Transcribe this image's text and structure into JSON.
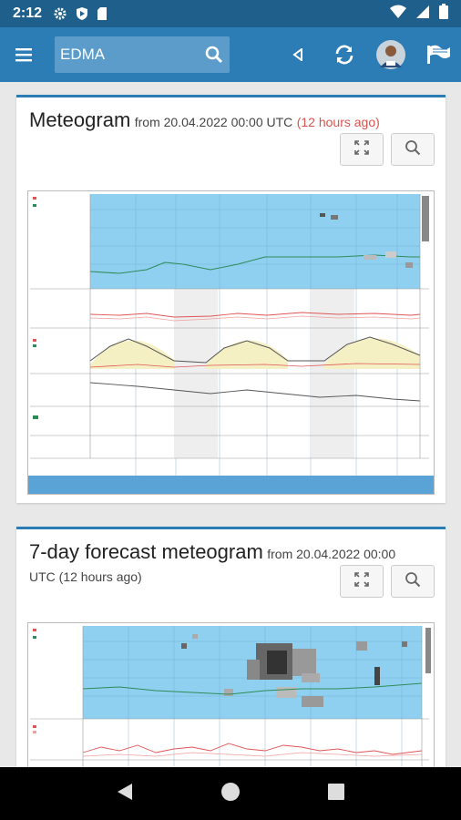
{
  "status": {
    "time": "2:12",
    "icons": [
      "gear-icon",
      "shield-icon",
      "sd-card-icon",
      "wifi-icon",
      "signal-icon",
      "battery-icon"
    ]
  },
  "appbar": {
    "search_value": "EDMA",
    "icons": [
      "menu-icon",
      "search-icon",
      "back-triangle-icon",
      "sync-icon",
      "avatar",
      "flag-icon"
    ]
  },
  "card1": {
    "title": "Meteogram",
    "subtitle": "from 20.04.2022 00:00 UTC",
    "ago": "(12 hours ago)",
    "tools": [
      "expand-icon",
      "zoom-icon"
    ]
  },
  "card2": {
    "title": "7-day forecast meteogram",
    "subtitle": "from 20.04.2022 00:00",
    "subtitle2": "UTC (12 hours ago)",
    "tools": [
      "expand-icon",
      "zoom-icon"
    ]
  },
  "colors": {
    "appbar": "#2c7cb5",
    "statusbar": "#1f5f8b",
    "accent_red": "#d9534f",
    "chart_sky": "#8fd0f0"
  },
  "navbar": {
    "icons": [
      "back-icon",
      "home-icon",
      "recents-icon"
    ]
  }
}
